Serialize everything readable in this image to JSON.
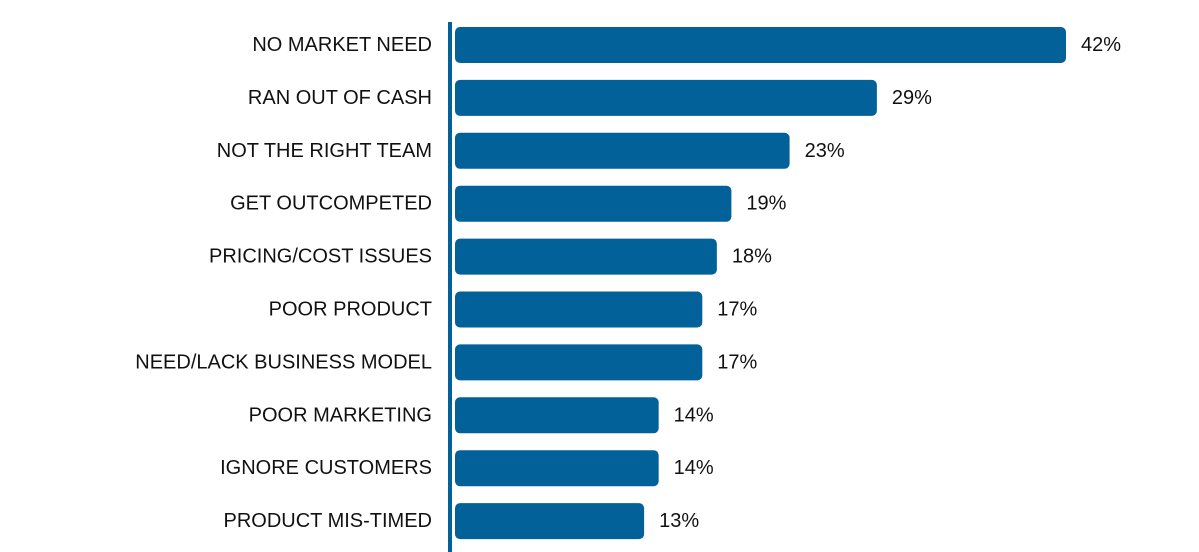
{
  "colors": {
    "bar": "#03619A",
    "text": "#111111",
    "background": "#FFFFFF"
  },
  "chart_data": {
    "type": "bar",
    "orientation": "horizontal",
    "title": "",
    "xlabel": "",
    "ylabel": "",
    "xlim": [
      0,
      42
    ],
    "grid": false,
    "legend": "none",
    "categories": [
      "NO MARKET NEED",
      "RAN OUT OF CASH",
      "NOT THE RIGHT TEAM",
      "GET OUTCOMPETED",
      "PRICING/COST ISSUES",
      "POOR PRODUCT",
      "NEED/LACK BUSINESS MODEL",
      "POOR MARKETING",
      "IGNORE CUSTOMERS",
      "PRODUCT MIS-TIMED"
    ],
    "values": [
      42,
      29,
      23,
      19,
      18,
      17,
      17,
      14,
      14,
      13
    ],
    "value_labels": [
      "42%",
      "29%",
      "23%",
      "19%",
      "18%",
      "17%",
      "17%",
      "14%",
      "14%",
      "13%"
    ]
  }
}
